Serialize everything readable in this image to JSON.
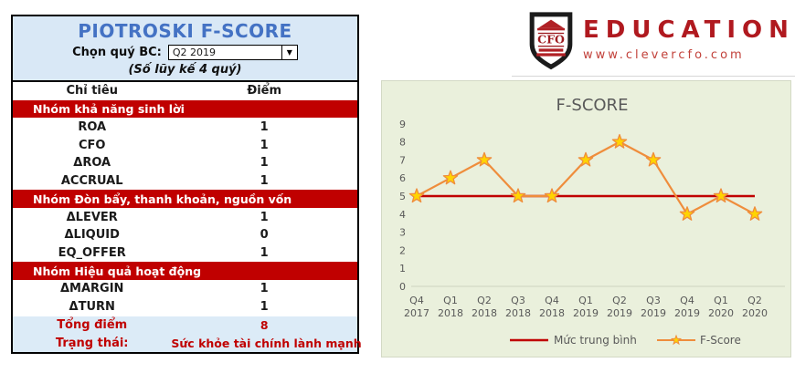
{
  "panel": {
    "title": "PIOTROSKI F-SCORE",
    "quarter_label": "Chọn quý BC:",
    "quarter_value": "Q2 2019",
    "subtitle": "(Số lũy kế 4 quý)",
    "col_headers": [
      "Chỉ tiêu",
      "Điểm"
    ],
    "groups": [
      {
        "name": "Nhóm khả năng sinh lời",
        "rows": [
          [
            "ROA",
            "1"
          ],
          [
            "CFO",
            "1"
          ],
          [
            "ΔROA",
            "1"
          ],
          [
            "ACCRUAL",
            "1"
          ]
        ]
      },
      {
        "name": "Nhóm Đòn bẩy, thanh khoản, nguồn vốn",
        "rows": [
          [
            "ΔLEVER",
            "1"
          ],
          [
            "ΔLIQUID",
            "0"
          ],
          [
            "EQ_OFFER",
            "1"
          ]
        ]
      },
      {
        "name": "Nhóm Hiệu quả hoạt động",
        "rows": [
          [
            "ΔMARGIN",
            "1"
          ],
          [
            "ΔTURN",
            "1"
          ]
        ]
      }
    ],
    "total_label": "Tổng điểm",
    "total_value": "8",
    "status_label": "Trạng thái:",
    "status_value": "Sức khỏe tài chính lành mạnh"
  },
  "logo": {
    "shield_text": "CFO",
    "brand": "EDUCATION",
    "url": "www.clevercfo.com"
  },
  "chart_data": {
    "type": "line",
    "title": "F-SCORE",
    "categories": [
      [
        "Q4",
        "2017"
      ],
      [
        "Q1",
        "2018"
      ],
      [
        "Q2",
        "2018"
      ],
      [
        "Q3",
        "2018"
      ],
      [
        "Q4",
        "2018"
      ],
      [
        "Q1",
        "2019"
      ],
      [
        "Q2",
        "2019"
      ],
      [
        "Q3",
        "2019"
      ],
      [
        "Q4",
        "2019"
      ],
      [
        "Q1",
        "2020"
      ],
      [
        "Q2",
        "2020"
      ]
    ],
    "series": [
      {
        "name": "Mức trung bình",
        "values": [
          5,
          5,
          5,
          5,
          5,
          5,
          5,
          5,
          5,
          5,
          5
        ],
        "color": "#c00000"
      },
      {
        "name": "F-Score",
        "values": [
          5,
          6,
          7,
          5,
          5,
          7,
          8,
          7,
          4,
          5,
          4
        ],
        "color": "#ef8d3c",
        "marker": "star",
        "marker_fill": "#ffd400"
      }
    ],
    "ylim": [
      0,
      9
    ],
    "grid": false,
    "legend_position": "bottom",
    "background": "#eaf0dc",
    "axis_text_color": "#595959",
    "axis_line_color": "#cdd4bf"
  },
  "colors": {
    "accent_red": "#c00000",
    "title_blue": "#4472c4",
    "header_blue": "#d9e8f6",
    "footer_blue": "#dcebf7",
    "brand_red": "#b0191f"
  }
}
